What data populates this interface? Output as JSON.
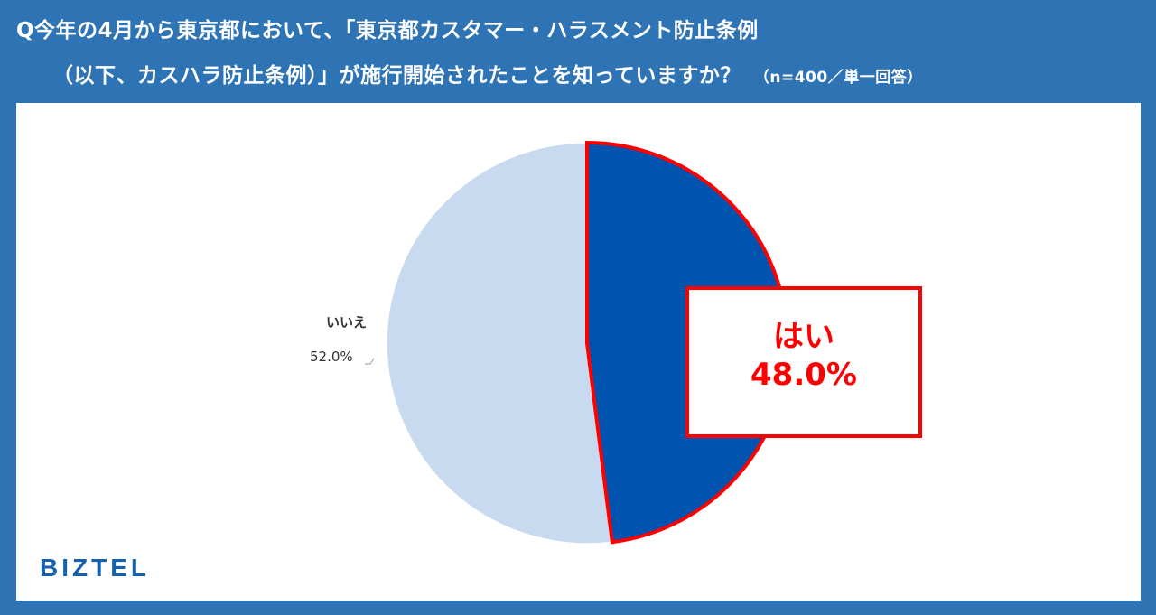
{
  "question": {
    "line1": "Q今年の4月から東京都において、「東京都カスタマー・ハラスメント防止条例",
    "line2": "（以下、カスハラ防止条例）」が施行開始されたことを知っていますか？",
    "note": "（n=400／単一回答）"
  },
  "chart_data": {
    "type": "pie",
    "title": "Q今年の4月から東京都において、「東京都カスタマー・ハラスメント防止条例（以下、カスハラ防止条例）」が施行開始されたことを知っていますか？",
    "categories": [
      "はい",
      "いいえ"
    ],
    "values": [
      48.0,
      52.0
    ],
    "value_labels": [
      "48.0%",
      "52.0%"
    ],
    "colors": [
      "#0054B0",
      "#C8DAF0"
    ],
    "highlight_color": "#FF0000",
    "start": "12 o'clock",
    "direction": "clockwise",
    "legend": "none"
  },
  "labels": {
    "yes_label": "はい",
    "yes_value": "48.0%",
    "no_label": "いいえ",
    "no_value": "52.0%"
  },
  "brand": {
    "logo_text": "BIZTEL",
    "color": "#1660B0"
  }
}
